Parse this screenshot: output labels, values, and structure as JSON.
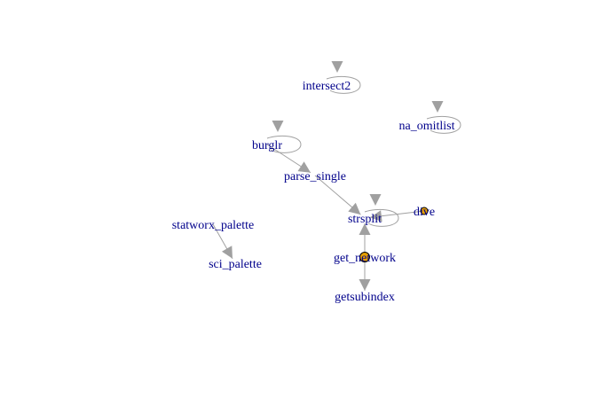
{
  "colors": {
    "label": "#00008b",
    "edge": "#a0a0a0",
    "vertex_fill": "#e69f00",
    "vertex_stroke": "#000000"
  },
  "graph": {
    "nodes": [
      {
        "id": "intersect2",
        "label": "intersect2",
        "vertex": false
      },
      {
        "id": "na_omitlist",
        "label": "na_omitlist",
        "vertex": false
      },
      {
        "id": "burglr",
        "label": "burglr",
        "vertex": false
      },
      {
        "id": "parse_single",
        "label": "parse_single",
        "vertex": false
      },
      {
        "id": "strsplit",
        "label": "strsplit",
        "vertex": false
      },
      {
        "id": "dive",
        "label": "dive",
        "vertex": true
      },
      {
        "id": "statworx_palette",
        "label": "statworx_palette",
        "vertex": false
      },
      {
        "id": "sci_palette",
        "label": "sci_palette",
        "vertex": false
      },
      {
        "id": "get_network",
        "label": "get_network",
        "vertex": true
      },
      {
        "id": "getsubindex",
        "label": "getsubindex",
        "vertex": false
      }
    ],
    "edges": [
      {
        "from": "intersect2",
        "to": "intersect2"
      },
      {
        "from": "na_omitlist",
        "to": "na_omitlist"
      },
      {
        "from": "burglr",
        "to": "burglr"
      },
      {
        "from": "burglr",
        "to": "parse_single"
      },
      {
        "from": "parse_single",
        "to": "strsplit"
      },
      {
        "from": "strsplit",
        "to": "strsplit"
      },
      {
        "from": "dive",
        "to": "strsplit"
      },
      {
        "from": "get_network",
        "to": "strsplit"
      },
      {
        "from": "get_network",
        "to": "getsubindex"
      },
      {
        "from": "statworx_palette",
        "to": "sci_palette"
      }
    ]
  }
}
